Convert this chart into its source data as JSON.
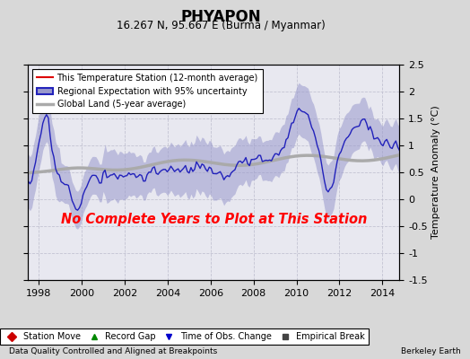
{
  "title": "PHYAPON",
  "subtitle": "16.267 N, 95.667 E (Burma / Myanmar)",
  "ylabel": "Temperature Anomaly (°C)",
  "xlabel_left": "Data Quality Controlled and Aligned at Breakpoints",
  "xlabel_right": "Berkeley Earth",
  "no_data_text": "No Complete Years to Plot at This Station",
  "xmin": 1997.5,
  "xmax": 2014.8,
  "ymin": -1.5,
  "ymax": 2.5,
  "yticks": [
    -1.5,
    -1.0,
    -0.5,
    0.0,
    0.5,
    1.0,
    1.5,
    2.0,
    2.5
  ],
  "xticks": [
    1998,
    2000,
    2002,
    2004,
    2006,
    2008,
    2010,
    2012,
    2014
  ],
  "bg_color": "#d8d8d8",
  "plot_bg_color": "#e8e8f0",
  "regional_color": "#2222bb",
  "regional_fill_color": "#9999cc",
  "global_color": "#aaaaaa",
  "station_color": "#dd0000",
  "fig_width": 5.24,
  "fig_height": 4.0,
  "dpi": 100,
  "legend_items": [
    {
      "label": "This Temperature Station (12-month average)",
      "color": "#dd0000",
      "lw": 1.5
    },
    {
      "label": "Regional Expectation with 95% uncertainty",
      "color": "#2222bb",
      "lw": 1.5
    },
    {
      "label": "Global Land (5-year average)",
      "color": "#aaaaaa",
      "lw": 2.5
    }
  ],
  "legend_markers": [
    {
      "label": "Station Move",
      "marker": "D",
      "color": "#cc0000"
    },
    {
      "label": "Record Gap",
      "marker": "^",
      "color": "#008800"
    },
    {
      "label": "Time of Obs. Change",
      "marker": "v",
      "color": "#0000cc"
    },
    {
      "label": "Empirical Break",
      "marker": "s",
      "color": "#444444"
    }
  ]
}
